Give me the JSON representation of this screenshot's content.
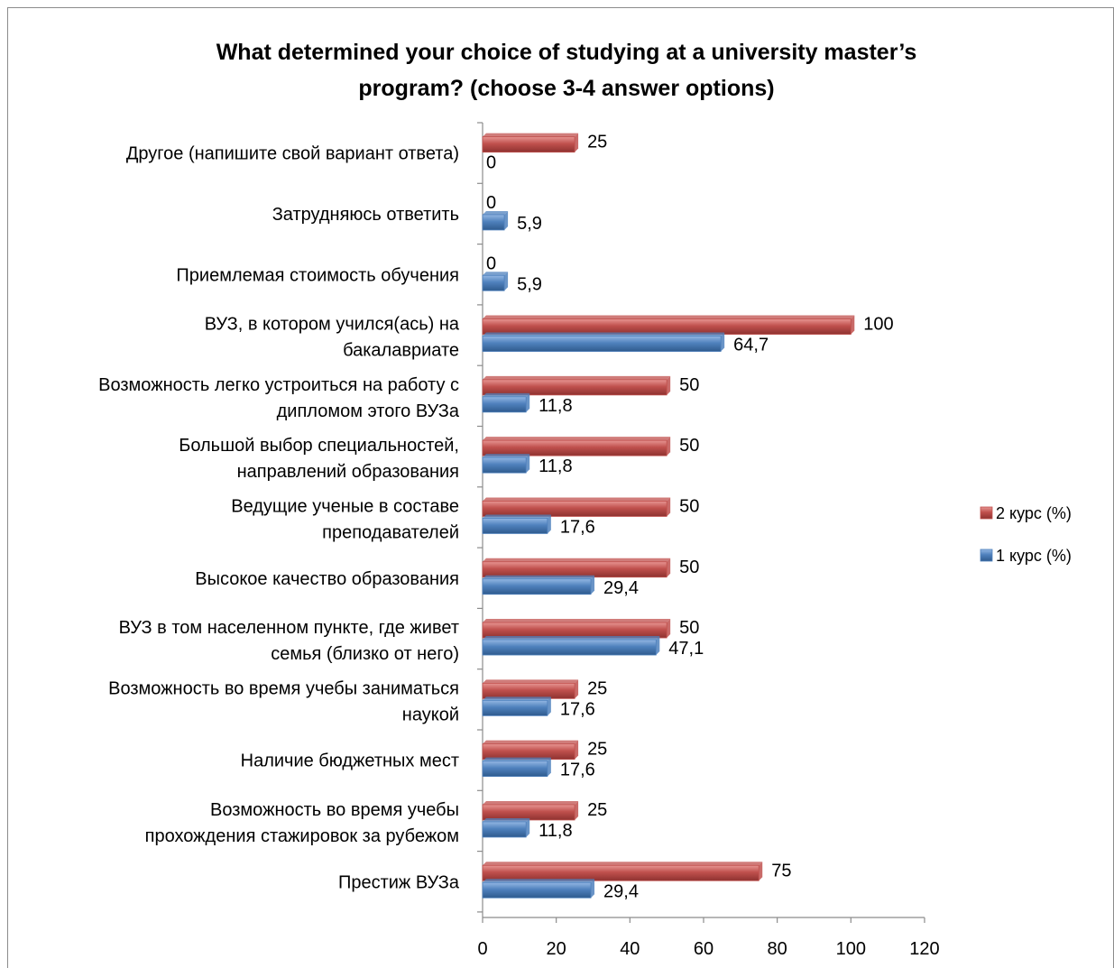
{
  "chart_data": {
    "type": "bar",
    "orientation": "horizontal",
    "title": "What determined your choice of studying at a university master’s program? (choose 3-4 answer options)",
    "title_lines": [
      "What determined your choice of studying at a university master’s",
      "program? (choose 3-4 answer options)"
    ],
    "categories": [
      [
        "Другое (напишите свой вариант ответа)"
      ],
      [
        "Затрудняюсь ответить"
      ],
      [
        "Приемлемая стоимость обучения"
      ],
      [
        "ВУЗ, в котором учился(ась) на",
        "бакалавриате"
      ],
      [
        "Возможность легко устроиться на работу с",
        "дипломом этого ВУЗа"
      ],
      [
        "Большой выбор специальностей,",
        "направлений образования"
      ],
      [
        "Ведущие ученые в составе",
        "преподавателей"
      ],
      [
        "Высокое качество образования"
      ],
      [
        "ВУЗ в том населенном пункте, где живет",
        "семья (близко от него)"
      ],
      [
        "Возможность во время учебы заниматься",
        "наукой"
      ],
      [
        "Наличие бюджетных мест"
      ],
      [
        "Возможность во время учебы",
        "прохождения стажировок за рубежом"
      ],
      [
        "Престиж ВУЗа"
      ]
    ],
    "series": [
      {
        "name": "2 курс (%)",
        "color": "#c0504d",
        "values": [
          25,
          0,
          0,
          100,
          50,
          50,
          50,
          50,
          50,
          25,
          25,
          25,
          75
        ],
        "labels": [
          "25",
          "0",
          "0",
          "100",
          "50",
          "50",
          "50",
          "50",
          "50",
          "25",
          "25",
          "25",
          "75"
        ]
      },
      {
        "name": "1 курс (%)",
        "color": "#4f81bd",
        "values": [
          0,
          5.9,
          5.9,
          64.7,
          11.8,
          11.8,
          17.6,
          29.4,
          47.1,
          17.6,
          17.6,
          11.8,
          29.4
        ],
        "labels": [
          "0",
          "5,9",
          "5,9",
          "64,7",
          "11,8",
          "11,8",
          "17,6",
          "29,4",
          "47,1",
          "17,6",
          "17,6",
          "11,8",
          "29,4"
        ]
      }
    ],
    "xlim": [
      0,
      120
    ],
    "xticks": [
      "0",
      "20",
      "40",
      "60",
      "80",
      "100",
      "120"
    ],
    "grid": false,
    "legend_position": "right"
  }
}
